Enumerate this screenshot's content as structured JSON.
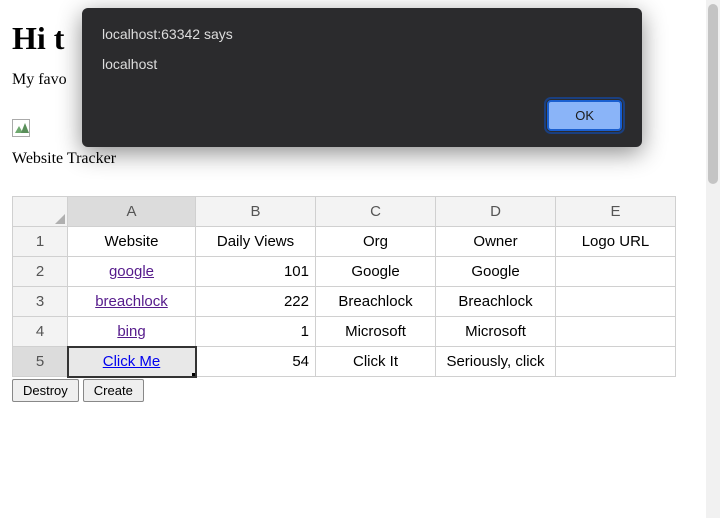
{
  "page": {
    "heading_full": "Hi t",
    "fav_prefix": "My favo",
    "tracker_label": "Website Tracker"
  },
  "alert": {
    "origin": "localhost:63342 says",
    "message": "localhost",
    "ok_label": "OK",
    "bg_color": "#2b2b2d",
    "ok_bg": "#8ab4f8"
  },
  "sheet": {
    "columns": [
      "A",
      "B",
      "C",
      "D",
      "E"
    ],
    "selected_col_index": 0,
    "selected_row_index": 4,
    "headers_row": 0,
    "rows": [
      {
        "n": "1",
        "cells": [
          "Website",
          "Daily Views",
          "Org",
          "Owner",
          "Logo URL"
        ],
        "align": [
          "center",
          "center",
          "center",
          "center",
          "center"
        ],
        "link": [
          false,
          false,
          false,
          false,
          false
        ]
      },
      {
        "n": "2",
        "cells": [
          "google",
          "101",
          "Google",
          "Google",
          ""
        ],
        "align": [
          "center",
          "right",
          "center",
          "center",
          "center"
        ],
        "link": [
          true,
          false,
          false,
          false,
          false
        ]
      },
      {
        "n": "3",
        "cells": [
          "breachlock",
          "222",
          "Breachlock",
          "Breachlock",
          ""
        ],
        "align": [
          "center",
          "right",
          "center",
          "center",
          "center"
        ],
        "link": [
          true,
          false,
          false,
          false,
          false
        ]
      },
      {
        "n": "4",
        "cells": [
          "bing",
          "1",
          "Microsoft",
          "Microsoft",
          ""
        ],
        "align": [
          "center",
          "right",
          "center",
          "center",
          "center"
        ],
        "link": [
          true,
          false,
          false,
          false,
          false
        ]
      },
      {
        "n": "5",
        "cells": [
          "Click Me",
          "54",
          "Click It",
          "Seriously, click",
          ""
        ],
        "align": [
          "center",
          "right",
          "center",
          "center",
          "center"
        ],
        "link": [
          true,
          false,
          false,
          false,
          false
        ],
        "link_blue": true,
        "selected_cell": 0
      }
    ]
  },
  "buttons": {
    "destroy": "Destroy",
    "create": "Create"
  }
}
